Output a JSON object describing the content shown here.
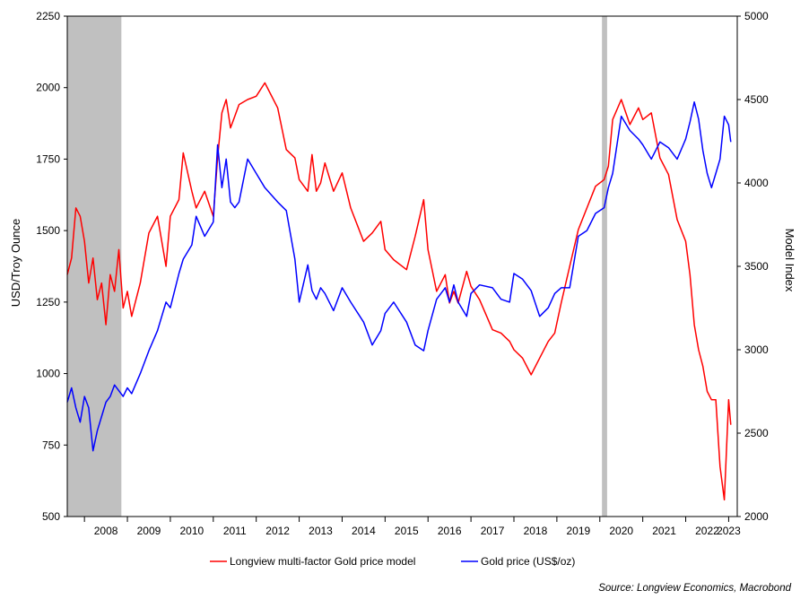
{
  "chart_data": {
    "type": "line",
    "title": "",
    "left_axis": {
      "label": "USD/Troy Ounce",
      "ylim": [
        500,
        2250
      ],
      "ticks": [
        500,
        750,
        1000,
        1250,
        1500,
        1750,
        2000,
        2250
      ]
    },
    "right_axis": {
      "label": "Model Index",
      "ylim": [
        2000,
        5000
      ],
      "ticks": [
        2000,
        2500,
        3000,
        3500,
        4000,
        4500,
        5000
      ]
    },
    "x_axis": {
      "xlim": [
        2007.6,
        2023.2
      ],
      "tick_labels": [
        "2008",
        "2009",
        "2010",
        "2011",
        "2012",
        "2013",
        "2014",
        "2015",
        "2016",
        "2017",
        "2018",
        "2019",
        "2020",
        "2021",
        "2022",
        "2023"
      ]
    },
    "shaded_periods": [
      {
        "start": 2007.6,
        "end": 2008.86,
        "color": "#c0c0c0"
      },
      {
        "start": 2020.05,
        "end": 2020.17,
        "color": "#c0c0c0"
      }
    ],
    "series": [
      {
        "name": "Longview multi-factor Gold price model",
        "axis": "right",
        "color": "#ff0000",
        "x": [
          2007.6,
          2007.7,
          2007.8,
          2007.9,
          2008.0,
          2008.1,
          2008.2,
          2008.3,
          2008.4,
          2008.5,
          2008.6,
          2008.7,
          2008.8,
          2008.9,
          2009.0,
          2009.1,
          2009.3,
          2009.5,
          2009.7,
          2009.9,
          2010.0,
          2010.2,
          2010.3,
          2010.5,
          2010.6,
          2010.8,
          2011.0,
          2011.1,
          2011.2,
          2011.3,
          2011.4,
          2011.5,
          2011.6,
          2011.8,
          2012.0,
          2012.2,
          2012.5,
          2012.7,
          2012.9,
          2013.0,
          2013.2,
          2013.3,
          2013.4,
          2013.5,
          2013.6,
          2013.8,
          2014.0,
          2014.2,
          2014.5,
          2014.7,
          2014.9,
          2015.0,
          2015.2,
          2015.5,
          2015.7,
          2015.9,
          2016.0,
          2016.2,
          2016.4,
          2016.5,
          2016.6,
          2016.7,
          2016.9,
          2017.0,
          2017.2,
          2017.5,
          2017.7,
          2017.9,
          2018.0,
          2018.2,
          2018.4,
          2018.6,
          2018.8,
          2018.95,
          2019.1,
          2019.3,
          2019.5,
          2019.7,
          2019.9,
          2020.1,
          2020.2,
          2020.3,
          2020.5,
          2020.7,
          2020.9,
          2021.0,
          2021.2,
          2021.4,
          2021.6,
          2021.8,
          2022.0,
          2022.1,
          2022.2,
          2022.3,
          2022.4,
          2022.5,
          2022.6,
          2022.7,
          2022.8,
          2022.9,
          2023.0,
          2023.05
        ],
        "y": [
          3450,
          3550,
          3850,
          3800,
          3650,
          3400,
          3550,
          3300,
          3400,
          3150,
          3450,
          3350,
          3600,
          3250,
          3350,
          3200,
          3400,
          3700,
          3800,
          3500,
          3800,
          3900,
          4180,
          3950,
          3850,
          3950,
          3800,
          4150,
          4420,
          4500,
          4330,
          4400,
          4470,
          4500,
          4520,
          4600,
          4450,
          4200,
          4150,
          4020,
          3950,
          4170,
          3950,
          4000,
          4120,
          3950,
          4060,
          3850,
          3650,
          3700,
          3770,
          3600,
          3540,
          3480,
          3680,
          3900,
          3600,
          3350,
          3450,
          3280,
          3350,
          3280,
          3470,
          3380,
          3300,
          3120,
          3100,
          3050,
          3000,
          2950,
          2850,
          2950,
          3050,
          3100,
          3280,
          3500,
          3720,
          3850,
          3980,
          4020,
          4100,
          4380,
          4500,
          4350,
          4450,
          4380,
          4420,
          4150,
          4050,
          3780,
          3650,
          3450,
          3150,
          3000,
          2900,
          2750,
          2700,
          2700,
          2300,
          2100,
          2700,
          2550
        ],
        "values": null
      },
      {
        "name": "Gold price (US$/oz)",
        "axis": "left",
        "color": "#0000ff",
        "x": [
          2007.6,
          2007.7,
          2007.8,
          2007.9,
          2008.0,
          2008.1,
          2008.2,
          2008.3,
          2008.4,
          2008.5,
          2008.6,
          2008.7,
          2008.8,
          2008.9,
          2009.0,
          2009.1,
          2009.3,
          2009.5,
          2009.7,
          2009.9,
          2010.0,
          2010.2,
          2010.3,
          2010.5,
          2010.6,
          2010.8,
          2011.0,
          2011.1,
          2011.2,
          2011.3,
          2011.4,
          2011.5,
          2011.6,
          2011.8,
          2012.0,
          2012.2,
          2012.5,
          2012.7,
          2012.9,
          2013.0,
          2013.2,
          2013.3,
          2013.4,
          2013.5,
          2013.6,
          2013.8,
          2014.0,
          2014.2,
          2014.5,
          2014.7,
          2014.9,
          2015.0,
          2015.2,
          2015.5,
          2015.7,
          2015.9,
          2016.0,
          2016.2,
          2016.4,
          2016.5,
          2016.6,
          2016.7,
          2016.9,
          2017.0,
          2017.2,
          2017.5,
          2017.7,
          2017.9,
          2018.0,
          2018.2,
          2018.4,
          2018.6,
          2018.8,
          2018.95,
          2019.1,
          2019.3,
          2019.5,
          2019.7,
          2019.9,
          2020.1,
          2020.2,
          2020.3,
          2020.5,
          2020.7,
          2020.9,
          2021.0,
          2021.2,
          2021.4,
          2021.6,
          2021.8,
          2022.0,
          2022.1,
          2022.2,
          2022.3,
          2022.4,
          2022.5,
          2022.6,
          2022.7,
          2022.8,
          2022.9,
          2023.0,
          2023.05
        ],
        "y": [
          900,
          950,
          880,
          830,
          920,
          880,
          730,
          800,
          850,
          900,
          920,
          960,
          940,
          920,
          950,
          930,
          1000,
          1080,
          1150,
          1250,
          1230,
          1350,
          1400,
          1450,
          1550,
          1480,
          1530,
          1800,
          1650,
          1750,
          1600,
          1580,
          1600,
          1750,
          1700,
          1650,
          1600,
          1570,
          1400,
          1250,
          1380,
          1290,
          1260,
          1300,
          1280,
          1220,
          1300,
          1250,
          1180,
          1100,
          1150,
          1210,
          1250,
          1180,
          1100,
          1080,
          1150,
          1260,
          1300,
          1250,
          1310,
          1250,
          1200,
          1280,
          1310,
          1300,
          1260,
          1250,
          1350,
          1330,
          1290,
          1200,
          1230,
          1280,
          1300,
          1300,
          1480,
          1500,
          1560,
          1580,
          1650,
          1700,
          1900,
          1850,
          1820,
          1800,
          1750,
          1810,
          1790,
          1750,
          1820,
          1880,
          1950,
          1890,
          1780,
          1700,
          1650,
          1700,
          1750,
          1900,
          1870,
          1810
        ],
        "values": null
      }
    ],
    "legend": {
      "position": "bottom-center"
    },
    "grid": false,
    "source": "Source: Longview Economics, Macrobond"
  }
}
